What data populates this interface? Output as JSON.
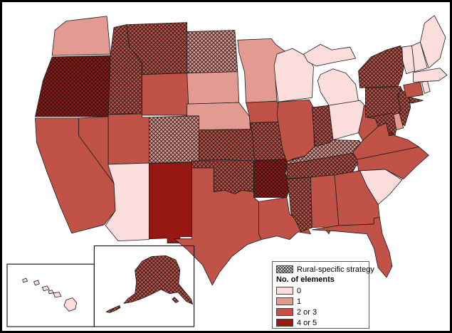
{
  "figure": {
    "background": "#ffffff",
    "border_color": "#000000",
    "state_outline_color": "#1c1c1c",
    "hatch_color": "#141414"
  },
  "legend": {
    "rural_label": "Rural-specific strategy",
    "elements_title": "No. of elements",
    "classes": [
      {
        "label": "0",
        "color": "#fbdddc"
      },
      {
        "label": "1",
        "color": "#e39a91"
      },
      {
        "label": "2 or 3",
        "color": "#c05248"
      },
      {
        "label": "4 or 5",
        "color": "#971713"
      }
    ]
  },
  "map": {
    "insets": [
      "Alaska",
      "Hawaii"
    ],
    "states": [
      {
        "abbr": "WA",
        "name": "Washington",
        "value": "1",
        "rural_hatch": false
      },
      {
        "abbr": "OR",
        "name": "Oregon",
        "value": "4 or 5",
        "rural_hatch": true
      },
      {
        "abbr": "CA",
        "name": "California",
        "value": "2 or 3",
        "rural_hatch": false
      },
      {
        "abbr": "NV",
        "name": "Nevada",
        "value": "2 or 3",
        "rural_hatch": false
      },
      {
        "abbr": "ID",
        "name": "Idaho",
        "value": "2 or 3",
        "rural_hatch": true
      },
      {
        "abbr": "MT",
        "name": "Montana",
        "value": "2 or 3",
        "rural_hatch": true
      },
      {
        "abbr": "WY",
        "name": "Wyoming",
        "value": "2 or 3",
        "rural_hatch": false
      },
      {
        "abbr": "UT",
        "name": "Utah",
        "value": "2 or 3",
        "rural_hatch": false
      },
      {
        "abbr": "CO",
        "name": "Colorado",
        "value": "1",
        "rural_hatch": true
      },
      {
        "abbr": "AZ",
        "name": "Arizona",
        "value": "0",
        "rural_hatch": false
      },
      {
        "abbr": "NM",
        "name": "New Mexico",
        "value": "4 or 5",
        "rural_hatch": false
      },
      {
        "abbr": "ND",
        "name": "North Dakota",
        "value": "1",
        "rural_hatch": true
      },
      {
        "abbr": "SD",
        "name": "South Dakota",
        "value": "1",
        "rural_hatch": false
      },
      {
        "abbr": "NE",
        "name": "Nebraska",
        "value": "1",
        "rural_hatch": false
      },
      {
        "abbr": "KS",
        "name": "Kansas",
        "value": "2 or 3",
        "rural_hatch": true
      },
      {
        "abbr": "OK",
        "name": "Oklahoma",
        "value": "2 or 3",
        "rural_hatch": true
      },
      {
        "abbr": "TX",
        "name": "Texas",
        "value": "2 or 3",
        "rural_hatch": false
      },
      {
        "abbr": "MN",
        "name": "Minnesota",
        "value": "1",
        "rural_hatch": false
      },
      {
        "abbr": "IA",
        "name": "Iowa",
        "value": "2 or 3",
        "rural_hatch": false
      },
      {
        "abbr": "MO",
        "name": "Missouri",
        "value": "2 or 3",
        "rural_hatch": true
      },
      {
        "abbr": "AR",
        "name": "Arkansas",
        "value": "4 or 5",
        "rural_hatch": true
      },
      {
        "abbr": "LA",
        "name": "Louisiana",
        "value": "2 or 3",
        "rural_hatch": false
      },
      {
        "abbr": "WI",
        "name": "Wisconsin",
        "value": "0",
        "rural_hatch": false
      },
      {
        "abbr": "IL",
        "name": "Illinois",
        "value": "2 or 3",
        "rural_hatch": false
      },
      {
        "abbr": "IN",
        "name": "Indiana",
        "value": "2 or 3",
        "rural_hatch": true
      },
      {
        "abbr": "MI",
        "name": "Michigan",
        "value": "0",
        "rural_hatch": false
      },
      {
        "abbr": "OH",
        "name": "Ohio",
        "value": "0",
        "rural_hatch": false
      },
      {
        "abbr": "KY",
        "name": "Kentucky",
        "value": "1",
        "rural_hatch": true
      },
      {
        "abbr": "TN",
        "name": "Tennessee",
        "value": "2 or 3",
        "rural_hatch": true
      },
      {
        "abbr": "MS",
        "name": "Mississippi",
        "value": "2 or 3",
        "rural_hatch": true
      },
      {
        "abbr": "AL",
        "name": "Alabama",
        "value": "2 or 3",
        "rural_hatch": false
      },
      {
        "abbr": "GA",
        "name": "Georgia",
        "value": "2 or 3",
        "rural_hatch": false
      },
      {
        "abbr": "FL",
        "name": "Florida",
        "value": "2 or 3",
        "rural_hatch": false
      },
      {
        "abbr": "SC",
        "name": "South Carolina",
        "value": "0",
        "rural_hatch": false
      },
      {
        "abbr": "NC",
        "name": "North Carolina",
        "value": "2 or 3",
        "rural_hatch": false
      },
      {
        "abbr": "VA",
        "name": "Virginia",
        "value": "2 or 3",
        "rural_hatch": false
      },
      {
        "abbr": "WV",
        "name": "West Virginia",
        "value": "2 or 3",
        "rural_hatch": false
      },
      {
        "abbr": "PA",
        "name": "Pennsylvania",
        "value": "2 or 3",
        "rural_hatch": true
      },
      {
        "abbr": "NY",
        "name": "New York",
        "value": "2 or 3",
        "rural_hatch": true
      },
      {
        "abbr": "NJ",
        "name": "New Jersey",
        "value": "2 or 3",
        "rural_hatch": true
      },
      {
        "abbr": "MD",
        "name": "Maryland",
        "value": "2 or 3",
        "rural_hatch": true
      },
      {
        "abbr": "DE",
        "name": "Delaware",
        "value": "1",
        "rural_hatch": false
      },
      {
        "abbr": "DC",
        "name": "District of Columbia",
        "value": "4 or 5",
        "rural_hatch": false
      },
      {
        "abbr": "CT",
        "name": "Connecticut",
        "value": "2 or 3",
        "rural_hatch": false
      },
      {
        "abbr": "RI",
        "name": "Rhode Island",
        "value": "0",
        "rural_hatch": false
      },
      {
        "abbr": "MA",
        "name": "Massachusetts",
        "value": "0",
        "rural_hatch": false
      },
      {
        "abbr": "VT",
        "name": "Vermont",
        "value": "0",
        "rural_hatch": false
      },
      {
        "abbr": "NH",
        "name": "New Hampshire",
        "value": "0",
        "rural_hatch": false
      },
      {
        "abbr": "ME",
        "name": "Maine",
        "value": "0",
        "rural_hatch": false
      },
      {
        "abbr": "AK",
        "name": "Alaska",
        "value": "2 or 3",
        "rural_hatch": true
      },
      {
        "abbr": "HI",
        "name": "Hawaii",
        "value": "0",
        "rural_hatch": false
      }
    ]
  }
}
